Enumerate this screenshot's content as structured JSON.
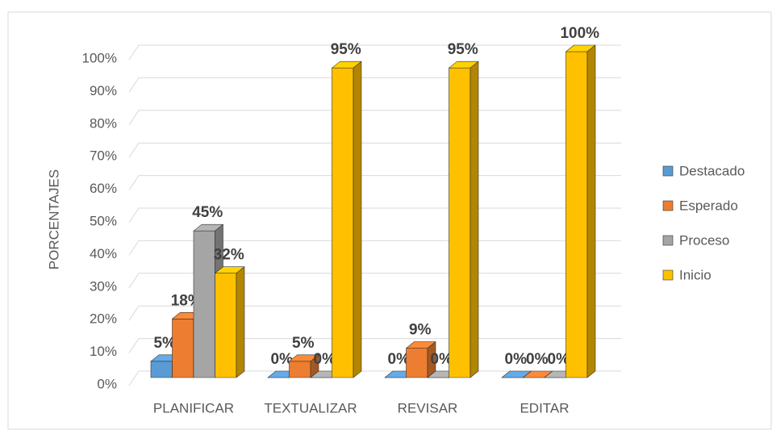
{
  "chart_data": {
    "type": "bar3d",
    "y_label": "PORCENTAJES",
    "categories": [
      "PLANIFICAR",
      "TEXTUALIZAR",
      "REVISAR",
      "EDITAR"
    ],
    "series": [
      {
        "name": "Destacado",
        "color": "#5b9bd5",
        "values": [
          5,
          0,
          0,
          0
        ],
        "value_labels": [
          "5%",
          "0%",
          "0%",
          "0%"
        ]
      },
      {
        "name": "Esperado",
        "color": "#ed7d31",
        "values": [
          18,
          5,
          9,
          0
        ],
        "value_labels": [
          "18%",
          "5%",
          "9%",
          "0%"
        ]
      },
      {
        "name": "Proceso",
        "color": "#a5a5a5",
        "values": [
          45,
          0,
          0,
          0
        ],
        "value_labels": [
          "45%",
          "0%",
          "0%",
          "0%"
        ]
      },
      {
        "name": "Inicio",
        "color": "#ffc000",
        "values": [
          32,
          95,
          95,
          100
        ],
        "value_labels": [
          "32%",
          "95%",
          "95%",
          "100%"
        ]
      }
    ],
    "ylim": [
      0,
      100
    ],
    "yticks": [
      {
        "value": 0,
        "label": "0%"
      },
      {
        "value": 10,
        "label": "10%"
      },
      {
        "value": 20,
        "label": "20%"
      },
      {
        "value": 30,
        "label": "30%"
      },
      {
        "value": 40,
        "label": "40%"
      },
      {
        "value": 50,
        "label": "50%"
      },
      {
        "value": 60,
        "label": "60%"
      },
      {
        "value": 70,
        "label": "70%"
      },
      {
        "value": 80,
        "label": "80%"
      },
      {
        "value": 90,
        "label": "90%"
      },
      {
        "value": 100,
        "label": "100%"
      }
    ],
    "grid": true,
    "legend": "right"
  }
}
